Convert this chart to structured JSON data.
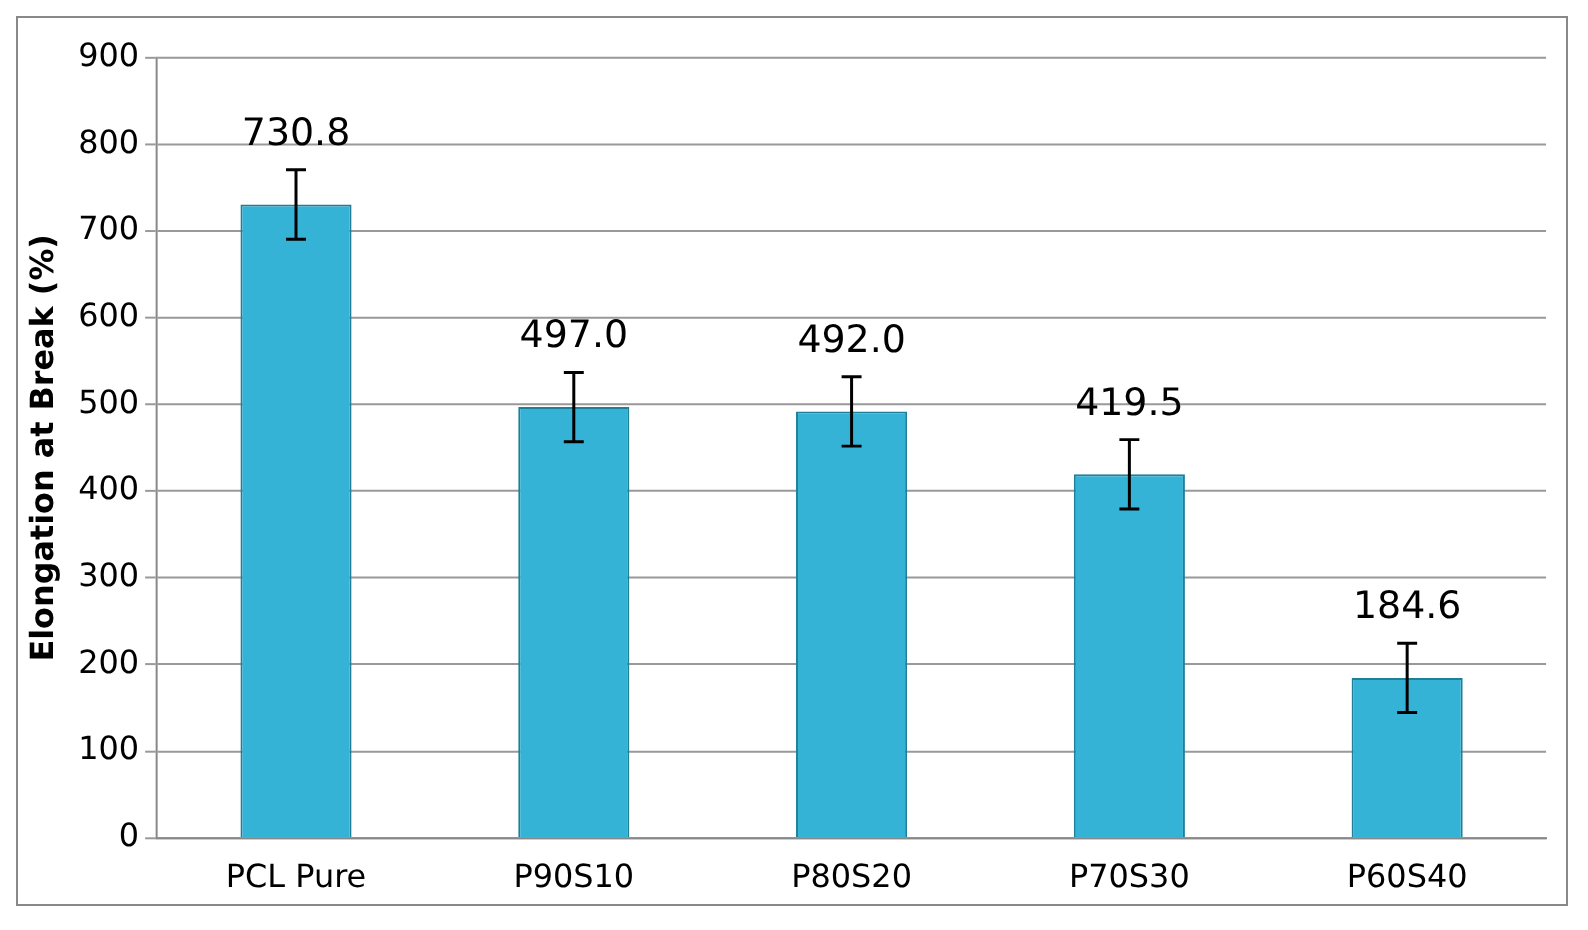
{
  "chart_data": {
    "type": "bar",
    "ylabel": "Elongation at Break (%)",
    "categories": [
      "PCL Pure",
      "P90S10",
      "P80S20",
      "P70S30",
      "P60S40"
    ],
    "values": [
      730.8,
      497.0,
      492.0,
      419.5,
      184.6
    ],
    "value_labels": [
      "730.8",
      "497.0",
      "492.0",
      "419.5",
      "184.6"
    ],
    "errors": [
      40,
      40,
      40,
      40,
      40
    ],
    "color": "#35b3d6",
    "ylim": [
      0,
      900
    ],
    "yticks": [
      0,
      100,
      200,
      300,
      400,
      500,
      600,
      700,
      800,
      900
    ],
    "grid": "y",
    "legend": false
  }
}
